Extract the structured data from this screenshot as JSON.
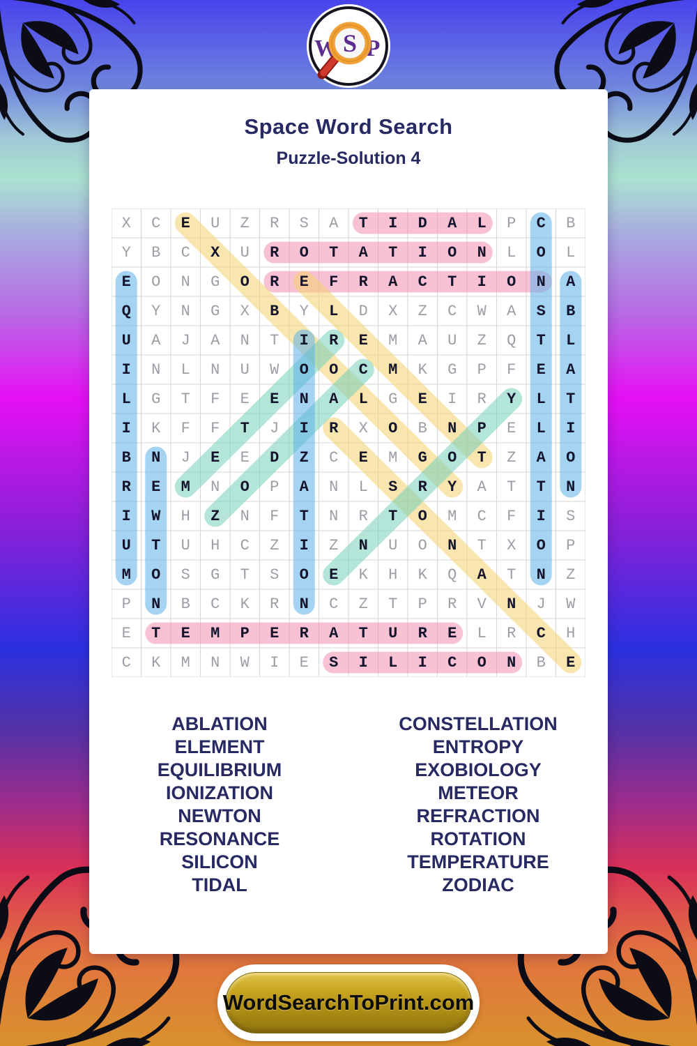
{
  "logo": {
    "w": "W",
    "s": "S",
    "p": "P"
  },
  "header": {
    "title": "Space Word Search",
    "subtitle": "Puzzle-Solution 4"
  },
  "grid": {
    "rows": [
      "XCEUZRSATIDALPCB",
      "YBCXUROTATIONLOL",
      "EONGOREFRACTIONA",
      "QYNGXBYLDXZCWASB",
      "UAJANTIREMAUZQTL",
      "INLNUWOOCMKGPFEA",
      "LGTFEENALGEIRYLT",
      "IKFFTJIRXOBNPELI",
      "BNJEEDZCEMGOTZAO",
      "REMNOPANLSRYATTN",
      "IWHZNFTNRTOMCFIS",
      "UTUHCZIZNUONTXOP",
      "MOSGTSOEKHKQATNZ",
      "PNBCKRNCZTPRVNJW",
      "ETEMPERATURELRCH",
      "CKMNWIESILICONBE"
    ],
    "highlights": [
      {
        "word": "TIDAL",
        "color": "pink",
        "from": [
          1,
          9
        ],
        "to": [
          1,
          13
        ]
      },
      {
        "word": "ROTATION",
        "color": "pink",
        "from": [
          2,
          6
        ],
        "to": [
          2,
          13
        ]
      },
      {
        "word": "REFRACTION",
        "color": "pink",
        "from": [
          3,
          6
        ],
        "to": [
          3,
          15
        ]
      },
      {
        "word": "TEMPERATURE",
        "color": "pink",
        "from": [
          15,
          2
        ],
        "to": [
          15,
          12
        ]
      },
      {
        "word": "SILICON",
        "color": "pink",
        "from": [
          16,
          8
        ],
        "to": [
          16,
          14
        ]
      },
      {
        "word": "EXOBIOLOGY",
        "color": "yellow",
        "from": [
          1,
          3
        ],
        "to": [
          10,
          12
        ]
      },
      {
        "word": "ELEMENT",
        "color": "yellow",
        "from": [
          3,
          7
        ],
        "to": [
          9,
          13
        ]
      },
      {
        "word": "RESONANCE",
        "color": "yellow",
        "from": [
          8,
          8
        ],
        "to": [
          16,
          16
        ]
      },
      {
        "word": "METEOR",
        "color": "teal",
        "from": [
          10,
          3
        ],
        "to": [
          5,
          8
        ]
      },
      {
        "word": "ZODIAC",
        "color": "teal",
        "from": [
          11,
          4
        ],
        "to": [
          6,
          9
        ]
      },
      {
        "word": "ENTROPY",
        "color": "teal",
        "from": [
          13,
          8
        ],
        "to": [
          7,
          14
        ]
      },
      {
        "word": "EQUILIBRIUM",
        "color": "blue",
        "from": [
          3,
          1
        ],
        "to": [
          13,
          1
        ]
      },
      {
        "word": "NEWTON",
        "color": "blue",
        "from": [
          9,
          2
        ],
        "to": [
          14,
          2
        ]
      },
      {
        "word": "IONIZATION",
        "color": "blue",
        "from": [
          5,
          7
        ],
        "to": [
          14,
          7
        ]
      },
      {
        "word": "CONSTELLATION",
        "color": "blue",
        "from": [
          1,
          15
        ],
        "to": [
          13,
          15
        ]
      },
      {
        "word": "ABLATION",
        "color": "blue",
        "from": [
          3,
          16
        ],
        "to": [
          10,
          16
        ]
      }
    ]
  },
  "words": {
    "left": [
      "ABLATION",
      "ELEMENT",
      "EQUILIBRIUM",
      "IONIZATION",
      "NEWTON",
      "RESONANCE",
      "SILICON",
      "TIDAL"
    ],
    "right": [
      "CONSTELLATION",
      "ENTROPY",
      "EXOBIOLOGY",
      "METEOR",
      "REFRACTION",
      "ROTATION",
      "TEMPERATURE",
      "ZODIAC"
    ]
  },
  "footer": {
    "site_label": "WordSearchToPrint.com"
  },
  "colors": {
    "pink": "#f48fb1",
    "yellow": "#f5d36e",
    "teal": "#76d0ba",
    "blue": "#5cb2ea",
    "gridline": "#d6d6d6",
    "title": "#272a62",
    "letter_normal": "#9d9da6",
    "letter_found": "#14142c",
    "logo_purple": "#5b2d8e",
    "magnifier_orange": "#f0a23a",
    "magnifier_red": "#bf271d",
    "button_gold": "#c7a520"
  }
}
